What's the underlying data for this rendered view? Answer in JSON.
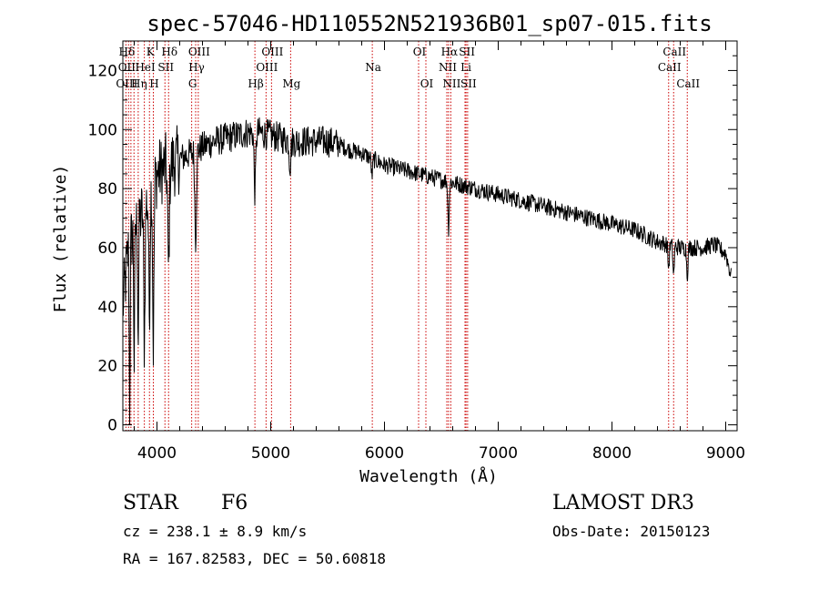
{
  "chart_data": {
    "type": "line",
    "title": "spec-57046-HD110552N521936B01_sp07-015.fits",
    "xlabel": "Wavelength (Å)",
    "ylabel": "Flux (relative)",
    "xlim": [
      3700,
      9100
    ],
    "ylim": [
      -2,
      130
    ],
    "xticks": [
      4000,
      5000,
      6000,
      7000,
      8000,
      9000
    ],
    "yticks": [
      0,
      20,
      40,
      60,
      80,
      100,
      120
    ],
    "continuum": [
      [
        3700,
        40
      ],
      [
        3750,
        60
      ],
      [
        3800,
        66
      ],
      [
        3850,
        70
      ],
      [
        3900,
        74
      ],
      [
        3950,
        80
      ],
      [
        4000,
        85
      ],
      [
        4100,
        88
      ],
      [
        4200,
        90
      ],
      [
        4300,
        92
      ],
      [
        4400,
        94
      ],
      [
        4500,
        96
      ],
      [
        4600,
        97
      ],
      [
        4700,
        98
      ],
      [
        4800,
        99
      ],
      [
        4900,
        99
      ],
      [
        5000,
        98
      ],
      [
        5100,
        97
      ],
      [
        5200,
        96
      ],
      [
        5300,
        96
      ],
      [
        5400,
        96
      ],
      [
        5500,
        96
      ],
      [
        5600,
        95
      ],
      [
        5700,
        93
      ],
      [
        5800,
        92
      ],
      [
        5900,
        90
      ],
      [
        6000,
        88
      ],
      [
        6100,
        87
      ],
      [
        6200,
        86
      ],
      [
        6300,
        85
      ],
      [
        6400,
        84
      ],
      [
        6500,
        83
      ],
      [
        6600,
        82
      ],
      [
        6700,
        81
      ],
      [
        6800,
        80
      ],
      [
        6900,
        79
      ],
      [
        7000,
        78
      ],
      [
        7200,
        76
      ],
      [
        7400,
        74
      ],
      [
        7600,
        72
      ],
      [
        7800,
        70
      ],
      [
        8000,
        68
      ],
      [
        8200,
        66
      ],
      [
        8400,
        62
      ],
      [
        8600,
        60
      ],
      [
        8800,
        60
      ],
      [
        8900,
        61
      ],
      [
        9000,
        58
      ],
      [
        9050,
        50
      ]
    ],
    "absorption_features": [
      {
        "center": 3760,
        "depth": 55,
        "width": 6
      },
      {
        "center": 3800,
        "depth": 45,
        "width": 6
      },
      {
        "center": 3835,
        "depth": 40,
        "width": 6
      },
      {
        "center": 3889,
        "depth": 45,
        "width": 8
      },
      {
        "center": 3933,
        "depth": 40,
        "width": 8
      },
      {
        "center": 3968,
        "depth": 55,
        "width": 8
      },
      {
        "center": 4101,
        "depth": 35,
        "width": 10
      },
      {
        "center": 4340,
        "depth": 30,
        "width": 10
      },
      {
        "center": 4861,
        "depth": 20,
        "width": 10
      },
      {
        "center": 5170,
        "depth": 8,
        "width": 10
      },
      {
        "center": 5890,
        "depth": 6,
        "width": 8
      },
      {
        "center": 6563,
        "depth": 16,
        "width": 8
      },
      {
        "center": 8498,
        "depth": 8,
        "width": 8
      },
      {
        "center": 8542,
        "depth": 10,
        "width": 8
      },
      {
        "center": 8662,
        "depth": 9,
        "width": 8
      }
    ],
    "noise_amplitude": 3,
    "spectral_lines": [
      {
        "label": "Hδ",
        "wavelength": 3727,
        "row": 1
      },
      {
        "label": "K",
        "wavelength": 3934,
        "row": 1
      },
      {
        "label": "Hδ",
        "wavelength": 4102,
        "row": 1
      },
      {
        "label": "OIII",
        "wavelength": 4363,
        "row": 1
      },
      {
        "label": "OIII",
        "wavelength": 5007,
        "row": 1
      },
      {
        "label": "OI",
        "wavelength": 6300,
        "row": 1
      },
      {
        "label": "Hα",
        "wavelength": 6563,
        "row": 1
      },
      {
        "label": "SII",
        "wavelength": 6717,
        "row": 1
      },
      {
        "label": "CaII",
        "wavelength": 8542,
        "row": 1
      },
      {
        "label": "OII",
        "wavelength": 3727,
        "row": 2
      },
      {
        "label": "HeI",
        "wavelength": 3889,
        "row": 2
      },
      {
        "label": "SII",
        "wavelength": 4070,
        "row": 2
      },
      {
        "label": "Hγ",
        "wavelength": 4340,
        "row": 2
      },
      {
        "label": "OIII",
        "wavelength": 4959,
        "row": 2
      },
      {
        "label": "Na",
        "wavelength": 5893,
        "row": 2
      },
      {
        "label": "NII",
        "wavelength": 6548,
        "row": 2
      },
      {
        "label": "Li",
        "wavelength": 6708,
        "row": 2
      },
      {
        "label": "CaII",
        "wavelength": 8498,
        "row": 2
      },
      {
        "label": "OIII",
        "wavelength": 3727,
        "row": 3
      },
      {
        "label": "Hη",
        "wavelength": 3835,
        "row": 3
      },
      {
        "label": "H",
        "wavelength": 3968,
        "row": 3
      },
      {
        "label": "G",
        "wavelength": 4305,
        "row": 3
      },
      {
        "label": "Hβ",
        "wavelength": 4861,
        "row": 3
      },
      {
        "label": "Mg",
        "wavelength": 5175,
        "row": 3
      },
      {
        "label": "OI",
        "wavelength": 6364,
        "row": 3
      },
      {
        "label": "NII",
        "wavelength": 6583,
        "row": 3
      },
      {
        "label": "SII",
        "wavelength": 6731,
        "row": 3
      },
      {
        "label": "CaII",
        "wavelength": 8662,
        "row": 3
      }
    ],
    "marker_lines": [
      3727,
      3750,
      3771,
      3798,
      3835,
      3889,
      3934,
      3968,
      4070,
      4102,
      4305,
      4340,
      4363,
      4861,
      4959,
      5007,
      5175,
      5893,
      6300,
      6364,
      6548,
      6563,
      6583,
      6708,
      6717,
      6731,
      8498,
      8542,
      8662
    ],
    "line_color": "#000000",
    "marker_color": "#cc0000"
  },
  "info": {
    "object_type": "STAR",
    "spectral_class": "F6",
    "survey": "LAMOST DR3",
    "cz": "cz = 238.1 ± 8.9 km/s",
    "obs_date": "Obs-Date: 20150123",
    "coords": "RA = 167.82583, DEC =  50.60818"
  }
}
